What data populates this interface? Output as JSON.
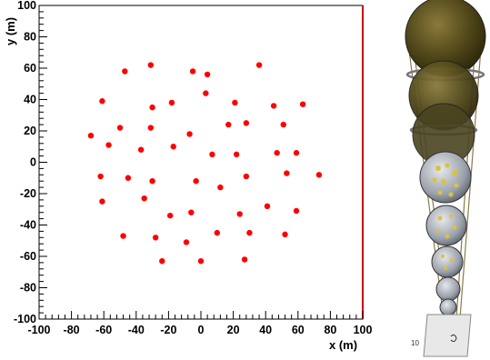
{
  "chart_data": {
    "type": "scatter",
    "title": "",
    "xlabel": "x (m)",
    "ylabel": "y (m)",
    "xlim": [
      -100,
      100
    ],
    "ylim": [
      -100,
      100
    ],
    "xticks": [
      -100,
      -80,
      -60,
      -40,
      -20,
      0,
      20,
      40,
      60,
      80,
      100
    ],
    "yticks": [
      -100,
      -80,
      -60,
      -40,
      -20,
      0,
      20,
      40,
      60,
      80,
      100
    ],
    "grid": false,
    "marker_color": "#ff0000",
    "series": [
      {
        "points": [
          [
            -31,
            62
          ],
          [
            -47,
            58
          ],
          [
            -5,
            58
          ],
          [
            4,
            56
          ],
          [
            36,
            62
          ],
          [
            -61,
            39
          ],
          [
            -18,
            38
          ],
          [
            -30,
            35
          ],
          [
            3,
            44
          ],
          [
            21,
            38
          ],
          [
            45,
            36
          ],
          [
            63,
            37
          ],
          [
            -50,
            22
          ],
          [
            -31,
            22
          ],
          [
            -7,
            18
          ],
          [
            17,
            24
          ],
          [
            28,
            25
          ],
          [
            51,
            24
          ],
          [
            -68,
            17
          ],
          [
            -57,
            11
          ],
          [
            -37,
            8
          ],
          [
            -17,
            10
          ],
          [
            7,
            5
          ],
          [
            22,
            5
          ],
          [
            47,
            6
          ],
          [
            59,
            6
          ],
          [
            -62,
            -9
          ],
          [
            -45,
            -10
          ],
          [
            -30,
            -12
          ],
          [
            -3,
            -12
          ],
          [
            12,
            -16
          ],
          [
            28,
            -9
          ],
          [
            53,
            -7
          ],
          [
            73,
            -8
          ],
          [
            -61,
            -25
          ],
          [
            -35,
            -23
          ],
          [
            -19,
            -34
          ],
          [
            -6,
            -32
          ],
          [
            24,
            -33
          ],
          [
            41,
            -28
          ],
          [
            59,
            -31
          ],
          [
            -48,
            -47
          ],
          [
            -28,
            -48
          ],
          [
            10,
            -45
          ],
          [
            -9,
            -51
          ],
          [
            30,
            -45
          ],
          [
            52,
            -46
          ],
          [
            -24,
            -63
          ],
          [
            0,
            -63
          ],
          [
            27,
            -62
          ]
        ]
      }
    ]
  },
  "tower": {
    "image_label": "10"
  }
}
